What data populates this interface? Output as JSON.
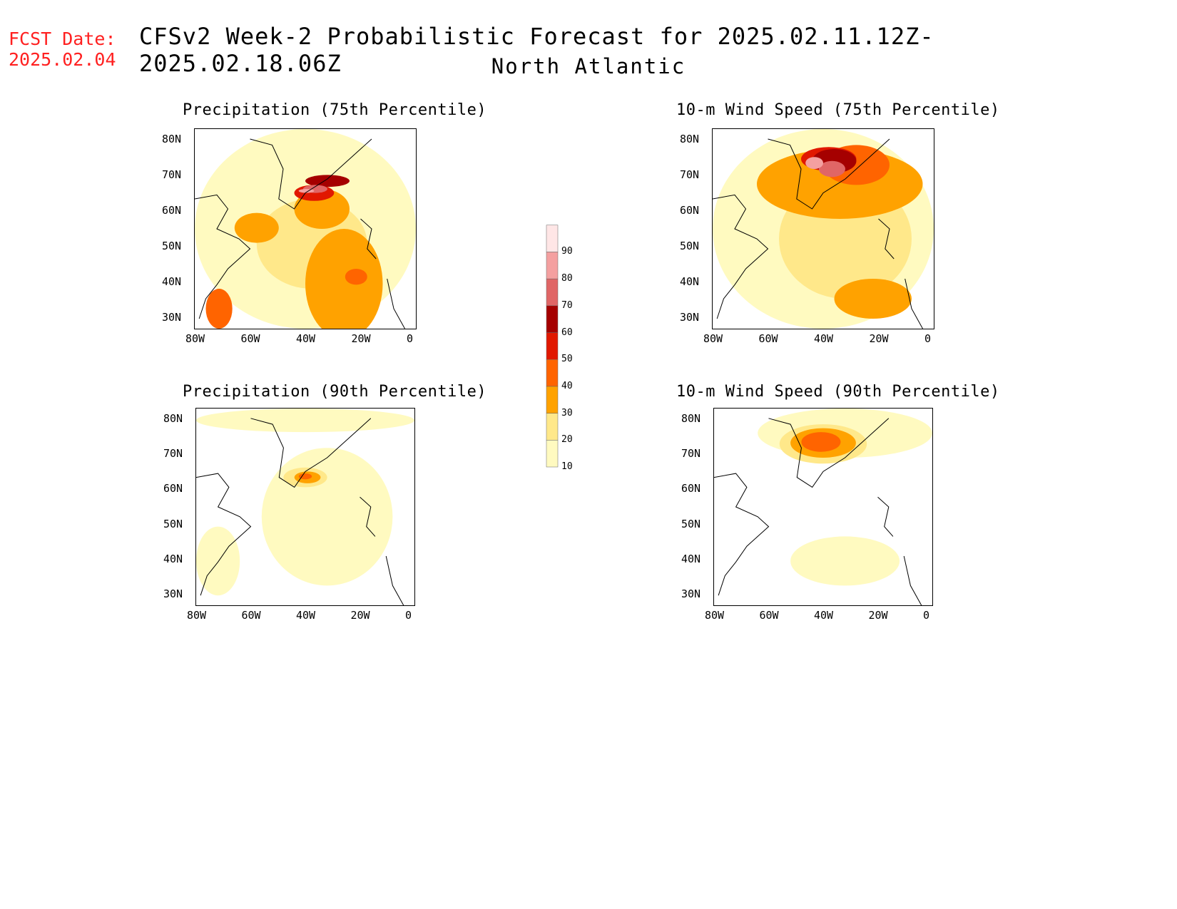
{
  "header": {
    "fcst_label": "FCST Date:",
    "fcst_date": "2025.02.04",
    "title": "CFSv2 Week-2 Probabilistic Forecast for 2025.02.11.12Z-2025.02.18.06Z",
    "subtitle": "North Atlantic"
  },
  "panels": [
    {
      "id": "precip75",
      "title": "Precipitation (75th Percentile)",
      "max_level": 8
    },
    {
      "id": "wind75",
      "title": "10-m Wind Speed (75th Percentile)",
      "max_level": 8
    },
    {
      "id": "precip90",
      "title": "Precipitation (90th Percentile)",
      "max_level": 4
    },
    {
      "id": "wind90",
      "title": "10-m Wind Speed (90th Percentile)",
      "max_level": 5
    }
  ],
  "axes": {
    "lat_labels": [
      "80N",
      "70N",
      "60N",
      "50N",
      "40N",
      "30N"
    ],
    "lon_labels": [
      "80W",
      "60W",
      "40W",
      "20W",
      "0"
    ]
  },
  "colorbar": {
    "levels": [
      "10",
      "20",
      "30",
      "40",
      "50",
      "60",
      "70",
      "80",
      "90"
    ],
    "colors": [
      "#fffac0",
      "#ffe88a",
      "#ffa200",
      "#ff6400",
      "#e11800",
      "#a50000",
      "#e06666",
      "#f4a0a0",
      "#ffe6e6"
    ]
  }
}
